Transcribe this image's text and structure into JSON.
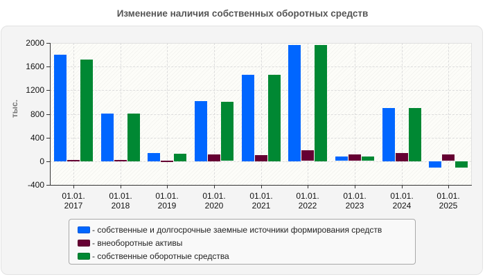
{
  "chart_data": {
    "type": "bar",
    "title": "Изменение наличия собственных оборотных средств",
    "xlabel": "",
    "ylabel": "тыс.",
    "ylim": [
      -400,
      2000
    ],
    "yticks": [
      2000,
      1600,
      1200,
      800,
      400,
      0,
      -400
    ],
    "grid": true,
    "legend_position": "bottom",
    "categories": [
      "01.01.\n2017",
      "01.01.\n2018",
      "01.01.\n2019",
      "01.01.\n2020",
      "01.01.\n2021",
      "01.01.\n2022",
      "01.01.\n2023",
      "01.01.\n2024",
      "01.01.\n2025"
    ],
    "category_labels": [
      {
        "line1": "01.01.",
        "line2": "2017"
      },
      {
        "line1": "01.01.",
        "line2": "2018"
      },
      {
        "line1": "01.01.",
        "line2": "2019"
      },
      {
        "line1": "01.01.",
        "line2": "2020"
      },
      {
        "line1": "01.01.",
        "line2": "2021"
      },
      {
        "line1": "01.01.",
        "line2": "2022"
      },
      {
        "line1": "01.01.",
        "line2": "2023"
      },
      {
        "line1": "01.01.",
        "line2": "2024"
      },
      {
        "line1": "01.01.",
        "line2": "2025"
      }
    ],
    "series": [
      {
        "name": "собственные и долгосрочные заемные источники формирования средств",
        "color": "#0066ff",
        "values": [
          1800,
          810,
          140,
          1020,
          1460,
          1965,
          75,
          900,
          -105
        ]
      },
      {
        "name": "внеоборотные активы",
        "color": "#660033",
        "values": [
          20,
          20,
          10,
          120,
          100,
          180,
          110,
          140,
          110
        ]
      },
      {
        "name": "собственные оборотные средства",
        "color": "#008833",
        "values": [
          1720,
          810,
          130,
          1000,
          1460,
          1965,
          75,
          900,
          -105
        ]
      }
    ]
  },
  "legend": {
    "items": [
      {
        "label": "- собственные и долгосрочные заемные источники формирования средств",
        "color": "#0066ff"
      },
      {
        "label": "- внеоборотные активы",
        "color": "#660033"
      },
      {
        "label": "- собственные оборотные средства",
        "color": "#008833"
      }
    ]
  },
  "axis": {
    "y_tick_labels": [
      "2000",
      "1600",
      "1200",
      "800",
      "400",
      "0",
      "-400"
    ],
    "y_title": "тыс."
  }
}
